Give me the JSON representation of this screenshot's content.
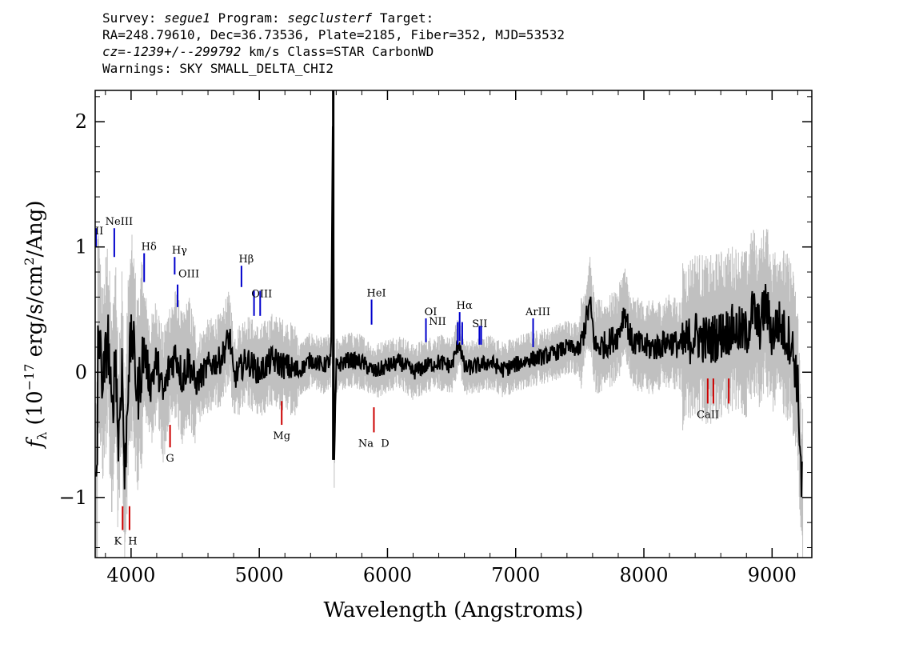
{
  "header": {
    "survey_label": "Survey:",
    "survey": "segue1",
    "program_label": "Program:",
    "program": "segclusterf",
    "target_label": "Target:",
    "line2": "RA=248.79610, Dec=36.73536, Plate=2185, Fiber=352, MJD=53532",
    "cz_label": "cz=",
    "cz_value": "-1239+/--299792",
    "cz_units": "km/s",
    "class_text": "Class=STAR CarbonWD",
    "warnings": "Warnings: SKY SMALL_DELTA_CHI2"
  },
  "chart_data": {
    "type": "line",
    "xlabel": "Wavelength (Angstroms)",
    "ylabel": "f_λ (10^-17 erg/s/cm^2/Ang)",
    "xlim": [
      3720,
      9310
    ],
    "ylim": [
      -1.48,
      2.25
    ],
    "x_ticks": [
      4000,
      5000,
      6000,
      7000,
      8000,
      9000
    ],
    "y_ticks": [
      -1,
      0,
      1,
      2
    ],
    "x_tick_labels": [
      "4000",
      "5000",
      "6000",
      "7000",
      "8000",
      "9000"
    ],
    "y_tick_labels": [
      "−1",
      "0",
      "1",
      "2"
    ],
    "series": [
      {
        "role": "flux",
        "color": "#000000",
        "points": [
          [
            3740,
            0.4
          ],
          [
            3780,
            -0.1
          ],
          [
            3820,
            0.3
          ],
          [
            3850,
            -0.4
          ],
          [
            3880,
            0.2
          ],
          [
            3900,
            -0.6
          ],
          [
            3930,
            0.1
          ],
          [
            3950,
            -0.9
          ],
          [
            3980,
            0.05
          ],
          [
            4010,
            0.3
          ],
          [
            4050,
            -0.2
          ],
          [
            4100,
            0.2
          ],
          [
            4150,
            -0.1
          ],
          [
            4200,
            0.1
          ],
          [
            4250,
            -0.2
          ],
          [
            4300,
            0.05
          ],
          [
            4350,
            0.15
          ],
          [
            4400,
            -0.05
          ],
          [
            4450,
            0.1
          ],
          [
            4500,
            -0.1
          ],
          [
            4600,
            0.05
          ],
          [
            4700,
            0.1
          ],
          [
            4770,
            0.3
          ],
          [
            4800,
            -0.05
          ],
          [
            4900,
            0.1
          ],
          [
            5000,
            0.0
          ],
          [
            5100,
            0.1
          ],
          [
            5200,
            0.05
          ],
          [
            5300,
            0.0
          ],
          [
            5400,
            0.1
          ],
          [
            5500,
            0.05
          ],
          [
            5560,
            0.1
          ],
          [
            5575,
            2.25
          ],
          [
            5585,
            -0.7
          ],
          [
            5600,
            0.05
          ],
          [
            5700,
            0.1
          ],
          [
            5800,
            0.08
          ],
          [
            5900,
            0.0
          ],
          [
            6000,
            0.05
          ],
          [
            6100,
            0.08
          ],
          [
            6200,
            0.0
          ],
          [
            6300,
            0.05
          ],
          [
            6400,
            0.08
          ],
          [
            6500,
            0.05
          ],
          [
            6560,
            0.25
          ],
          [
            6600,
            0.03
          ],
          [
            6700,
            0.05
          ],
          [
            6800,
            0.08
          ],
          [
            6900,
            0.02
          ],
          [
            7000,
            0.06
          ],
          [
            7100,
            0.1
          ],
          [
            7200,
            0.12
          ],
          [
            7300,
            0.15
          ],
          [
            7400,
            0.2
          ],
          [
            7500,
            0.18
          ],
          [
            7580,
            0.55
          ],
          [
            7620,
            0.2
          ],
          [
            7700,
            0.22
          ],
          [
            7800,
            0.3
          ],
          [
            7850,
            0.5
          ],
          [
            7900,
            0.25
          ],
          [
            8000,
            0.2
          ],
          [
            8100,
            0.2
          ],
          [
            8200,
            0.25
          ],
          [
            8300,
            0.2
          ],
          [
            8400,
            0.3
          ],
          [
            8500,
            0.25
          ],
          [
            8600,
            0.3
          ],
          [
            8700,
            0.35
          ],
          [
            8800,
            0.3
          ],
          [
            8850,
            0.5
          ],
          [
            8900,
            0.35
          ],
          [
            8950,
            0.55
          ],
          [
            9000,
            0.3
          ],
          [
            9050,
            0.4
          ],
          [
            9100,
            0.3
          ],
          [
            9150,
            0.25
          ],
          [
            9200,
            -0.1
          ],
          [
            9230,
            -0.9
          ]
        ]
      },
      {
        "role": "error",
        "color": "#c0c0c0",
        "note": "noise envelope around flux"
      }
    ],
    "emission_lines": [
      {
        "label": "II",
        "wavelength": 3727
      },
      {
        "label": "NeIII",
        "wavelength": 3869
      },
      {
        "label": "Hδ",
        "wavelength": 4102
      },
      {
        "label": "Hγ",
        "wavelength": 4340
      },
      {
        "label": "OIII",
        "wavelength": 4363
      },
      {
        "label": "Hβ",
        "wavelength": 4861
      },
      {
        "label": "OIII",
        "wavelength": 4959
      },
      {
        "label": "OIII",
        "wavelength": 5007
      },
      {
        "label": "HeI",
        "wavelength": 5876
      },
      {
        "label": "OI",
        "wavelength": 6300
      },
      {
        "label": "NII",
        "wavelength": 6548
      },
      {
        "label": "Hα",
        "wavelength": 6563
      },
      {
        "label": "NII",
        "wavelength": 6583
      },
      {
        "label": "SII",
        "wavelength": 6717
      },
      {
        "label": "SII",
        "wavelength": 6731
      },
      {
        "label": "ArIII",
        "wavelength": 7136
      }
    ],
    "absorption_lines": [
      {
        "label": "K",
        "wavelength": 3934
      },
      {
        "label": "H",
        "wavelength": 3969
      },
      {
        "label": "G",
        "wavelength": 4304
      },
      {
        "label": "Mg",
        "wavelength": 5175
      },
      {
        "label": "Na",
        "wavelength": 5894
      },
      {
        "label": "D",
        "wavelength": 5894
      },
      {
        "label": "CaII",
        "wavelength": 8498
      },
      {
        "label": "CaII",
        "wavelength": 8542
      },
      {
        "label": "CaII",
        "wavelength": 8662
      }
    ],
    "colors": {
      "flux": "#000000",
      "error": "#c0c0c0",
      "emission": "#0000cc",
      "absorption": "#cc0000"
    }
  }
}
